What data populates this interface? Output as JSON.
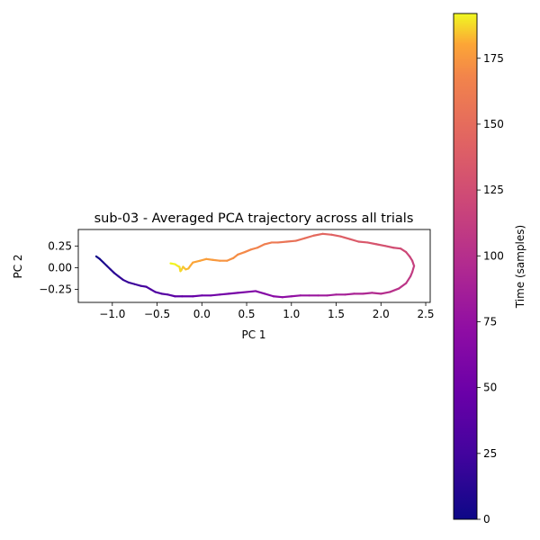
{
  "chart_data": {
    "type": "line",
    "title": "sub-03 - Averaged PCA trajectory across all trials",
    "xlabel": "PC 1",
    "ylabel": "PC 2",
    "xlim": [
      -1.38,
      2.55
    ],
    "ylim": [
      -0.4,
      0.44
    ],
    "x_ticks": [
      -1.0,
      -0.5,
      0.0,
      0.5,
      1.0,
      1.5,
      2.0,
      2.5
    ],
    "x_tick_labels": [
      "−1.0",
      "−0.5",
      "0.0",
      "0.5",
      "1.0",
      "1.5",
      "2.0",
      "2.5"
    ],
    "y_ticks": [
      -0.25,
      0.0,
      0.25
    ],
    "y_tick_labels": [
      "−0.25",
      "0.00",
      "0.25"
    ],
    "grid": false,
    "colormap": "plasma",
    "colorbar": {
      "label": "Time (samples)",
      "range": [
        0,
        192
      ],
      "ticks": [
        0,
        25,
        50,
        75,
        100,
        125,
        150,
        175
      ],
      "tick_labels": [
        "0",
        "25",
        "50",
        "75",
        "100",
        "125",
        "150",
        "175"
      ]
    },
    "series": [
      {
        "color_by": "time",
        "time_range": [
          0,
          192
        ],
        "points": [
          [
            -1.18,
            0.13
          ],
          [
            -1.14,
            0.1
          ],
          [
            -1.1,
            0.06
          ],
          [
            -1.06,
            0.02
          ],
          [
            -1.02,
            -0.02
          ],
          [
            -0.98,
            -0.06
          ],
          [
            -0.93,
            -0.1
          ],
          [
            -0.88,
            -0.14
          ],
          [
            -0.82,
            -0.17
          ],
          [
            -0.75,
            -0.19
          ],
          [
            -0.68,
            -0.21
          ],
          [
            -0.62,
            -0.22
          ],
          [
            -0.57,
            -0.25
          ],
          [
            -0.52,
            -0.28
          ],
          [
            -0.45,
            -0.3
          ],
          [
            -0.38,
            -0.31
          ],
          [
            -0.3,
            -0.33
          ],
          [
            -0.22,
            -0.33
          ],
          [
            -0.1,
            -0.33
          ],
          [
            0.0,
            -0.32
          ],
          [
            0.1,
            -0.32
          ],
          [
            0.2,
            -0.31
          ],
          [
            0.3,
            -0.3
          ],
          [
            0.4,
            -0.29
          ],
          [
            0.5,
            -0.28
          ],
          [
            0.6,
            -0.27
          ],
          [
            0.7,
            -0.3
          ],
          [
            0.8,
            -0.33
          ],
          [
            0.9,
            -0.34
          ],
          [
            1.0,
            -0.33
          ],
          [
            1.1,
            -0.32
          ],
          [
            1.2,
            -0.32
          ],
          [
            1.3,
            -0.32
          ],
          [
            1.4,
            -0.32
          ],
          [
            1.5,
            -0.31
          ],
          [
            1.6,
            -0.31
          ],
          [
            1.7,
            -0.3
          ],
          [
            1.8,
            -0.3
          ],
          [
            1.9,
            -0.29
          ],
          [
            2.0,
            -0.3
          ],
          [
            2.1,
            -0.28
          ],
          [
            2.2,
            -0.24
          ],
          [
            2.28,
            -0.18
          ],
          [
            2.33,
            -0.1
          ],
          [
            2.35,
            -0.05
          ],
          [
            2.37,
            0.02
          ],
          [
            2.35,
            0.08
          ],
          [
            2.32,
            0.13
          ],
          [
            2.28,
            0.18
          ],
          [
            2.22,
            0.22
          ],
          [
            2.14,
            0.23
          ],
          [
            2.05,
            0.25
          ],
          [
            1.95,
            0.27
          ],
          [
            1.85,
            0.29
          ],
          [
            1.75,
            0.3
          ],
          [
            1.65,
            0.33
          ],
          [
            1.55,
            0.36
          ],
          [
            1.45,
            0.38
          ],
          [
            1.35,
            0.39
          ],
          [
            1.25,
            0.37
          ],
          [
            1.15,
            0.34
          ],
          [
            1.05,
            0.31
          ],
          [
            0.95,
            0.3
          ],
          [
            0.85,
            0.29
          ],
          [
            0.78,
            0.29
          ],
          [
            0.7,
            0.27
          ],
          [
            0.62,
            0.23
          ],
          [
            0.55,
            0.21
          ],
          [
            0.48,
            0.18
          ],
          [
            0.4,
            0.15
          ],
          [
            0.35,
            0.11
          ],
          [
            0.28,
            0.08
          ],
          [
            0.2,
            0.08
          ],
          [
            0.12,
            0.09
          ],
          [
            0.05,
            0.1
          ],
          [
            -0.02,
            0.08
          ],
          [
            -0.1,
            0.06
          ],
          [
            -0.13,
            0.02
          ],
          [
            -0.15,
            -0.01
          ],
          [
            -0.18,
            -0.02
          ],
          [
            -0.21,
            0.01
          ],
          [
            -0.23,
            -0.03
          ],
          [
            -0.24,
            -0.04
          ],
          [
            -0.25,
            0.01
          ],
          [
            -0.27,
            0.02
          ],
          [
            -0.3,
            0.04
          ],
          [
            -0.35,
            0.05
          ]
        ]
      }
    ]
  }
}
